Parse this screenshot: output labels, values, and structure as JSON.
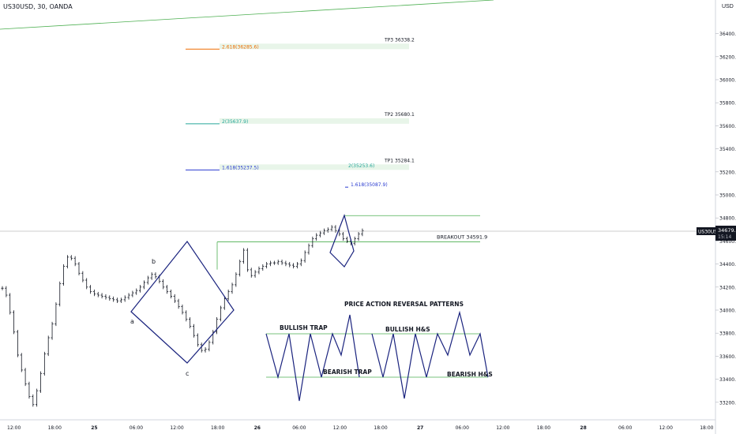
{
  "header": {
    "symbol_line": "US30USD, 30, OANDA",
    "currency": "USD"
  },
  "price_label": {
    "symbol": "US30USD",
    "price": "34679.8",
    "countdown": "15:14"
  },
  "chart_data": {
    "type": "line",
    "title": "US30USD, 30, OANDA",
    "ylabel": "USD",
    "ylim": [
      33050,
      36600
    ],
    "y_ticks": [
      33200,
      33400,
      33600,
      33800,
      34000,
      34200,
      34400,
      34600,
      34800,
      35000,
      35200,
      35400,
      35600,
      35800,
      36000,
      36200,
      36400
    ],
    "x_ticks": [
      "12:00",
      "18:00",
      "25",
      "06:00",
      "12:00",
      "18:00",
      "26",
      "06:00",
      "12:00",
      "18:00",
      "27",
      "06:00",
      "12:00",
      "18:00",
      "28",
      "06:00",
      "12:00",
      "18:00"
    ],
    "bold_x_ticks": [
      "25",
      "26",
      "27",
      "28"
    ],
    "price_series": [
      34190,
      34130,
      33980,
      33810,
      33610,
      33480,
      33360,
      33250,
      33180,
      33300,
      33450,
      33620,
      33760,
      33880,
      34050,
      34230,
      34380,
      34460,
      34450,
      34400,
      34320,
      34260,
      34200,
      34160,
      34140,
      34130,
      34120,
      34110,
      34100,
      34090,
      34080,
      34090,
      34110,
      34130,
      34150,
      34170,
      34200,
      34240,
      34280,
      34310,
      34290,
      34250,
      34200,
      34160,
      34120,
      34080,
      34030,
      33980,
      33920,
      33860,
      33780,
      33700,
      33650,
      33660,
      33720,
      33810,
      33920,
      34020,
      34100,
      34160,
      34220,
      34310,
      34420,
      34520,
      34350,
      34300,
      34330,
      34360,
      34380,
      34400,
      34410,
      34410,
      34420,
      34410,
      34400,
      34390,
      34380,
      34400,
      34430,
      34500,
      34560,
      34620,
      34650,
      34670,
      34690,
      34700,
      34720,
      34690,
      34660,
      34620,
      34600,
      34580,
      34620,
      34660,
      34690
    ],
    "levels": [
      {
        "label": "TP3 36338.2",
        "value": 36285.6,
        "fib_label": "2.618(36285.6)",
        "color": "#ef6c00"
      },
      {
        "label": "TP2 35680.1",
        "value": 35637.9,
        "fib_label": "2(35637.9)",
        "color": "#26a69a"
      },
      {
        "label": "TP1 35284.1",
        "value": 35237.5,
        "fib_label": "1.618(35237.5)",
        "color": "#2a3bd0"
      }
    ],
    "extra_fibs": [
      {
        "label": "2(35253.6)",
        "value": 35253.6,
        "color": "#26a69a"
      },
      {
        "label": "1.618(35087.9)",
        "value": 35087.9,
        "color": "#2a3bd0"
      }
    ],
    "breakout": {
      "label": "BREAKOUT 34591.9",
      "value": 34591.9
    },
    "resistance": {
      "value": 34820
    },
    "points": [
      "a",
      "b",
      "c"
    ],
    "legend_title": "PRICE ACTION REVERSAL PATTERNS",
    "patterns": [
      "BULLISH TRAP",
      "BEARISH TRAP",
      "BULLISH H&S",
      "BEARISH H&S"
    ]
  }
}
